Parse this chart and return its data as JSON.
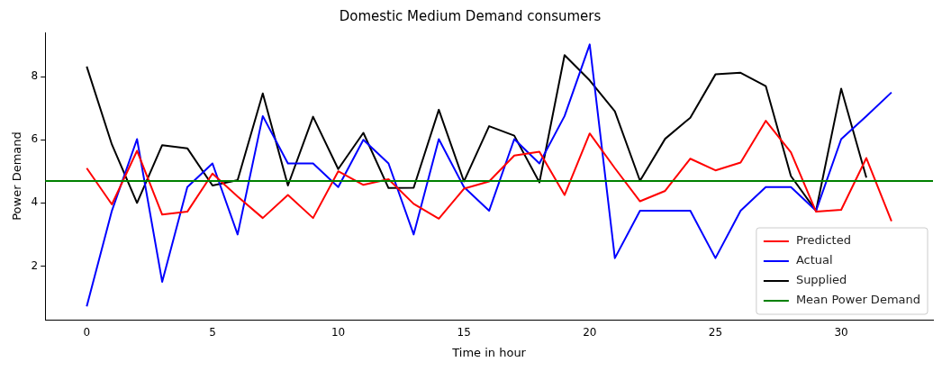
{
  "chart_data": {
    "type": "line",
    "title": "Domestic Medium Demand consumers",
    "xlabel": "Time in hour",
    "ylabel": "Power Demand",
    "x": [
      0,
      1,
      2,
      3,
      4,
      5,
      6,
      7,
      8,
      9,
      10,
      11,
      12,
      13,
      14,
      15,
      16,
      17,
      18,
      19,
      20,
      21,
      22,
      23,
      24,
      25,
      26,
      27,
      28,
      29,
      30,
      31,
      32
    ],
    "series": [
      {
        "name": "Predicted",
        "color": "#ff0000",
        "values": [
          5.1,
          3.95,
          5.65,
          3.63,
          3.72,
          4.93,
          4.2,
          3.52,
          4.25,
          3.52,
          5.0,
          4.57,
          4.75,
          3.97,
          3.5,
          4.45,
          4.68,
          5.5,
          5.62,
          4.25,
          6.2,
          5.1,
          4.05,
          4.38,
          5.4,
          5.03,
          5.28,
          6.6,
          5.6,
          3.72,
          3.78,
          5.42,
          3.42
        ]
      },
      {
        "name": "Actual",
        "color": "#0000ff",
        "values": [
          0.72,
          3.75,
          6.02,
          1.5,
          4.5,
          5.25,
          3.0,
          6.75,
          5.25,
          5.25,
          4.5,
          6.0,
          5.25,
          3.0,
          6.02,
          4.5,
          3.75,
          6.02,
          5.25,
          6.75,
          9.02,
          2.25,
          3.75,
          3.75,
          3.75,
          2.25,
          3.75,
          4.5,
          4.5,
          3.75,
          6.02,
          6.75,
          7.5
        ]
      },
      {
        "name": "Supplied",
        "color": "#000000",
        "values": [
          8.32,
          5.85,
          4.0,
          5.83,
          5.73,
          4.55,
          4.72,
          7.47,
          4.55,
          6.73,
          5.07,
          6.22,
          4.47,
          4.48,
          6.95,
          4.68,
          6.43,
          6.13,
          4.65,
          8.68,
          7.88,
          6.9,
          4.7,
          6.03,
          6.7,
          8.07,
          8.12,
          7.7,
          4.85,
          3.75,
          7.62,
          4.8,
          null
        ]
      }
    ],
    "ref_lines": [
      {
        "axis": "y",
        "value": 4.69,
        "label": "Mean Power Demand",
        "color": "#008000"
      }
    ],
    "xlim": [
      -1.65,
      33.65
    ],
    "ylim": [
      0.3,
      9.4
    ],
    "xticks": [
      0,
      5,
      10,
      15,
      20,
      25,
      30
    ],
    "yticks": [
      2,
      4,
      6,
      8
    ],
    "grid": false,
    "legend": "bottom right",
    "marker": "none",
    "line_style": "solid"
  }
}
